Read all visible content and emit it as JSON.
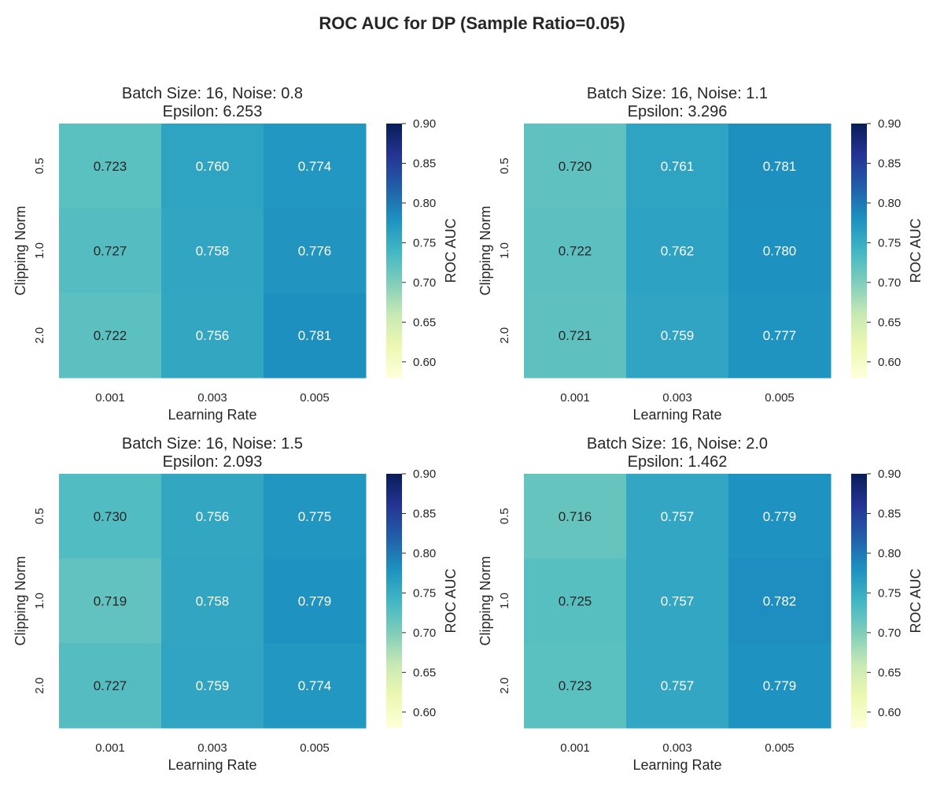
{
  "figure_title": "ROC AUC for DP (Sample Ratio=0.05)",
  "chart_data": [
    {
      "type": "heatmap",
      "title_line1": "Batch Size: 16, Noise: 0.8",
      "title_line2": "Epsilon: 6.253",
      "xlabel": "Learning Rate",
      "ylabel": "Clipping Norm",
      "x_categories": [
        "0.001",
        "0.003",
        "0.005"
      ],
      "y_categories": [
        "0.5",
        "1.0",
        "2.0"
      ],
      "values": [
        [
          0.723,
          0.76,
          0.774
        ],
        [
          0.727,
          0.758,
          0.776
        ],
        [
          0.722,
          0.756,
          0.781
        ]
      ],
      "colorbar": {
        "label": "ROC AUC",
        "range": [
          0.58,
          0.9
        ],
        "ticks": [
          "0.60",
          "0.65",
          "0.70",
          "0.75",
          "0.80",
          "0.85",
          "0.90"
        ],
        "colormap": "YlGnBu"
      }
    },
    {
      "type": "heatmap",
      "title_line1": "Batch Size: 16, Noise: 1.1",
      "title_line2": "Epsilon: 3.296",
      "xlabel": "Learning Rate",
      "ylabel": "Clipping Norm",
      "x_categories": [
        "0.001",
        "0.003",
        "0.005"
      ],
      "y_categories": [
        "0.5",
        "1.0",
        "2.0"
      ],
      "values": [
        [
          0.72,
          0.761,
          0.781
        ],
        [
          0.722,
          0.762,
          0.78
        ],
        [
          0.721,
          0.759,
          0.777
        ]
      ],
      "colorbar": {
        "label": "ROC AUC",
        "range": [
          0.58,
          0.9
        ],
        "ticks": [
          "0.60",
          "0.65",
          "0.70",
          "0.75",
          "0.80",
          "0.85",
          "0.90"
        ],
        "colormap": "YlGnBu"
      }
    },
    {
      "type": "heatmap",
      "title_line1": "Batch Size: 16, Noise: 1.5",
      "title_line2": "Epsilon: 2.093",
      "xlabel": "Learning Rate",
      "ylabel": "Clipping Norm",
      "x_categories": [
        "0.001",
        "0.003",
        "0.005"
      ],
      "y_categories": [
        "0.5",
        "1.0",
        "2.0"
      ],
      "values": [
        [
          0.73,
          0.756,
          0.775
        ],
        [
          0.719,
          0.758,
          0.779
        ],
        [
          0.727,
          0.759,
          0.774
        ]
      ],
      "colorbar": {
        "label": "ROC AUC",
        "range": [
          0.58,
          0.9
        ],
        "ticks": [
          "0.60",
          "0.65",
          "0.70",
          "0.75",
          "0.80",
          "0.85",
          "0.90"
        ],
        "colormap": "YlGnBu"
      }
    },
    {
      "type": "heatmap",
      "title_line1": "Batch Size: 16, Noise: 2.0",
      "title_line2": "Epsilon: 1.462",
      "xlabel": "Learning Rate",
      "ylabel": "Clipping Norm",
      "x_categories": [
        "0.001",
        "0.003",
        "0.005"
      ],
      "y_categories": [
        "0.5",
        "1.0",
        "2.0"
      ],
      "values": [
        [
          0.716,
          0.757,
          0.779
        ],
        [
          0.725,
          0.757,
          0.782
        ],
        [
          0.723,
          0.757,
          0.779
        ]
      ],
      "colorbar": {
        "label": "ROC AUC",
        "range": [
          0.58,
          0.9
        ],
        "ticks": [
          "0.60",
          "0.65",
          "0.70",
          "0.75",
          "0.80",
          "0.85",
          "0.90"
        ],
        "colormap": "YlGnBu"
      }
    }
  ]
}
